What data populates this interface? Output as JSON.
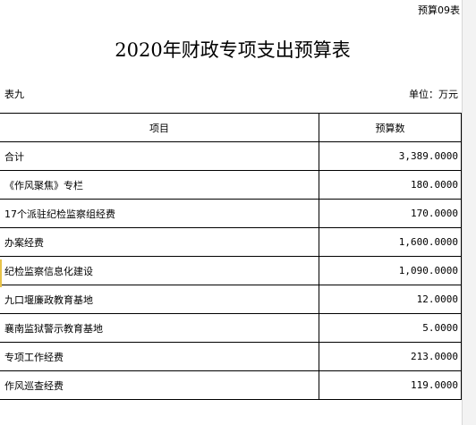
{
  "corner_tag": "预算09表",
  "title": "2020年财政专项支出预算表",
  "table_no": "表九",
  "unit": "单位：万元",
  "columns": [
    "项目",
    "预算数"
  ],
  "rows": [
    {
      "item": "合计",
      "amount": "3,389.0000"
    },
    {
      "item": "《作风聚焦》专栏",
      "amount": "180.0000"
    },
    {
      "item": "17个派驻纪检监察组经费",
      "amount": "170.0000"
    },
    {
      "item": "办案经费",
      "amount": "1,600.0000"
    },
    {
      "item": "纪检监察信息化建设",
      "amount": "1,090.0000"
    },
    {
      "item": "九口堰廉政教育基地",
      "amount": "12.0000"
    },
    {
      "item": "襄南监狱警示教育基地",
      "amount": "5.0000"
    },
    {
      "item": "专项工作经费",
      "amount": "213.0000"
    },
    {
      "item": "作风巡查经费",
      "amount": "119.0000"
    }
  ]
}
